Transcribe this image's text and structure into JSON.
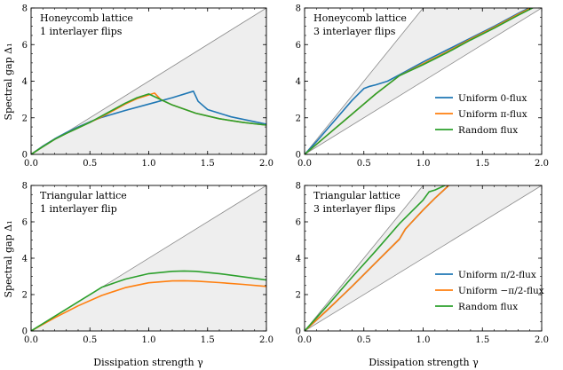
{
  "colors": {
    "blue": "#1f77b4",
    "orange": "#ff7f0e",
    "green": "#2ca02c",
    "region_fill": "#eeeeee",
    "bound_line": "#8a8a8a"
  },
  "figure": {
    "xlabel_left": "Dissipation strength γ",
    "xlabel_right": "Dissipation strength γ",
    "ylabel_top": "Spectral gap Δ₁",
    "ylabel_bottom": "Spectral gap Δ₁"
  },
  "chart_data": [
    {
      "type": "line",
      "panel": "top-left",
      "annotation": [
        "Honeycomb lattice",
        "1 interlayer flips"
      ],
      "xlim": [
        0,
        2.0
      ],
      "ylim": [
        0,
        8
      ],
      "xticks": [
        "0.0",
        "0.5",
        "1.0",
        "1.5",
        "2.0"
      ],
      "yticks": [
        "0",
        "2",
        "4",
        "6",
        "8"
      ],
      "bounds": {
        "upper_slope": 4,
        "lower_slope": 0
      },
      "legend": null,
      "series": [
        {
          "name": "",
          "color_key": "blue",
          "x": [
            0,
            0.1,
            0.2,
            0.3,
            0.4,
            0.5,
            0.6,
            0.8,
            1.0,
            1.2,
            1.38,
            1.42,
            1.5,
            1.7,
            2.0
          ],
          "y": [
            0,
            0.45,
            0.85,
            1.2,
            1.5,
            1.78,
            2.02,
            2.4,
            2.75,
            3.1,
            3.45,
            2.9,
            2.45,
            2.05,
            1.65
          ]
        },
        {
          "name": "",
          "color_key": "orange",
          "x": [
            0,
            0.1,
            0.2,
            0.3,
            0.4,
            0.5,
            0.6,
            0.7,
            0.8,
            0.9,
            1.0,
            1.05,
            1.1,
            1.2,
            1.4,
            1.6,
            1.8,
            2.0
          ],
          "y": [
            0,
            0.42,
            0.82,
            1.15,
            1.45,
            1.75,
            2.05,
            2.4,
            2.75,
            3.05,
            3.25,
            3.35,
            3.0,
            2.7,
            2.25,
            1.95,
            1.75,
            1.6
          ]
        },
        {
          "name": "",
          "color_key": "green",
          "x": [
            0,
            0.1,
            0.2,
            0.3,
            0.4,
            0.5,
            0.6,
            0.7,
            0.8,
            0.9,
            1.0,
            1.1,
            1.2,
            1.4,
            1.6,
            1.8,
            2.0
          ],
          "y": [
            0,
            0.42,
            0.82,
            1.15,
            1.45,
            1.75,
            2.1,
            2.45,
            2.8,
            3.1,
            3.3,
            3.0,
            2.7,
            2.25,
            1.95,
            1.75,
            1.6
          ]
        }
      ]
    },
    {
      "type": "line",
      "panel": "top-right",
      "annotation": [
        "Honeycomb lattice",
        "3 interlayer flips"
      ],
      "xlim": [
        0,
        2.0
      ],
      "ylim": [
        0,
        8
      ],
      "xticks": [
        "0.0",
        "0.5",
        "1.0",
        "1.5",
        "2.0"
      ],
      "yticks": [
        "0",
        "2",
        "4",
        "6",
        "8"
      ],
      "bounds": {
        "upper_slope": 8,
        "lower_slope": 4
      },
      "legend": {
        "position": "lower-right",
        "entries": [
          {
            "label": "Uniform 0-flux",
            "color_key": "blue"
          },
          {
            "label": "Uniform π-flux",
            "color_key": "orange"
          },
          {
            "label": "Random flux",
            "color_key": "green"
          }
        ]
      },
      "series": [
        {
          "name": "Uniform 0-flux",
          "color_key": "blue",
          "x": [
            0,
            0.1,
            0.2,
            0.3,
            0.4,
            0.5,
            0.55,
            0.6,
            0.7,
            0.8,
            1.0,
            1.2,
            1.4,
            1.6,
            1.8,
            2.0
          ],
          "y": [
            0,
            0.7,
            1.45,
            2.2,
            2.95,
            3.6,
            3.72,
            3.8,
            4.0,
            4.35,
            5.05,
            5.7,
            6.35,
            7.0,
            7.7,
            8.35
          ]
        },
        {
          "name": "Uniform π-flux",
          "color_key": "orange",
          "x": [
            0,
            0.2,
            0.4,
            0.6,
            0.8,
            1.0,
            1.2,
            1.4,
            1.6,
            1.8,
            2.0
          ],
          "y": [
            0,
            1.1,
            2.2,
            3.3,
            4.3,
            4.95,
            5.6,
            6.3,
            6.95,
            7.65,
            8.3
          ]
        },
        {
          "name": "Random flux",
          "color_key": "green",
          "x": [
            0,
            0.2,
            0.4,
            0.6,
            0.8,
            1.0,
            1.2,
            1.4,
            1.6,
            1.8,
            2.0
          ],
          "y": [
            0,
            1.1,
            2.2,
            3.3,
            4.3,
            4.9,
            5.55,
            6.25,
            6.9,
            7.6,
            8.25
          ]
        }
      ]
    },
    {
      "type": "line",
      "panel": "bottom-left",
      "annotation": [
        "Triangular lattice",
        "1 interlayer flip"
      ],
      "xlim": [
        0,
        2.0
      ],
      "ylim": [
        0,
        8
      ],
      "xticks": [
        "0.0",
        "0.5",
        "1.0",
        "1.5",
        "2.0"
      ],
      "yticks": [
        "0",
        "2",
        "4",
        "6",
        "8"
      ],
      "bounds": {
        "upper_slope": 4,
        "lower_slope": 0
      },
      "legend": null,
      "series": [
        {
          "name": "",
          "color_key": "orange",
          "x": [
            0,
            0.2,
            0.4,
            0.6,
            0.8,
            1.0,
            1.2,
            1.3,
            1.4,
            1.6,
            1.8,
            2.0
          ],
          "y": [
            0,
            0.72,
            1.38,
            1.95,
            2.38,
            2.65,
            2.75,
            2.76,
            2.74,
            2.66,
            2.56,
            2.45
          ]
        },
        {
          "name": "",
          "color_key": "green",
          "x": [
            0,
            0.2,
            0.4,
            0.55,
            0.6,
            0.8,
            1.0,
            1.2,
            1.3,
            1.4,
            1.6,
            1.8,
            2.0
          ],
          "y": [
            0,
            0.8,
            1.6,
            2.2,
            2.4,
            2.85,
            3.15,
            3.28,
            3.3,
            3.28,
            3.15,
            2.98,
            2.8
          ]
        }
      ]
    },
    {
      "type": "line",
      "panel": "bottom-right",
      "annotation": [
        "Triangular lattice",
        "3 interlayer flips"
      ],
      "xlim": [
        0,
        2.0
      ],
      "ylim": [
        0,
        8
      ],
      "xticks": [
        "0.0",
        "0.5",
        "1.0",
        "1.5",
        "2.0"
      ],
      "yticks": [
        "0",
        "2",
        "4",
        "6",
        "8"
      ],
      "bounds": {
        "upper_slope": 8,
        "lower_slope": 4
      },
      "legend": {
        "position": "lower-right",
        "entries": [
          {
            "label": "Uniform π/2-flux",
            "color_key": "blue"
          },
          {
            "label": "Uniform −π/2-flux",
            "color_key": "orange"
          },
          {
            "label": "Random flux",
            "color_key": "green"
          }
        ]
      },
      "series": [
        {
          "name": "Uniform π/2-flux",
          "color_key": "blue",
          "x": [
            0,
            0.2,
            0.4,
            0.6,
            0.8,
            0.85,
            0.9,
            1.0,
            1.1,
            1.2,
            1.3
          ],
          "y": [
            0,
            1.2,
            2.45,
            3.75,
            5.05,
            5.6,
            5.95,
            6.65,
            7.3,
            7.9,
            8.5
          ]
        },
        {
          "name": "Uniform −π/2-flux",
          "color_key": "orange",
          "x": [
            0,
            0.2,
            0.4,
            0.6,
            0.8,
            0.85,
            0.9,
            1.0,
            1.1,
            1.2,
            1.3,
            1.4
          ],
          "y": [
            0,
            1.2,
            2.45,
            3.75,
            5.05,
            5.6,
            5.95,
            6.65,
            7.3,
            7.9,
            8.5,
            9.0
          ]
        },
        {
          "name": "Random flux",
          "color_key": "green",
          "x": [
            0,
            0.2,
            0.4,
            0.6,
            0.8,
            1.0,
            1.05,
            1.1,
            1.2,
            1.3
          ],
          "y": [
            0,
            1.45,
            2.95,
            4.4,
            5.9,
            7.2,
            7.65,
            7.75,
            8.05,
            8.5
          ]
        }
      ]
    }
  ]
}
